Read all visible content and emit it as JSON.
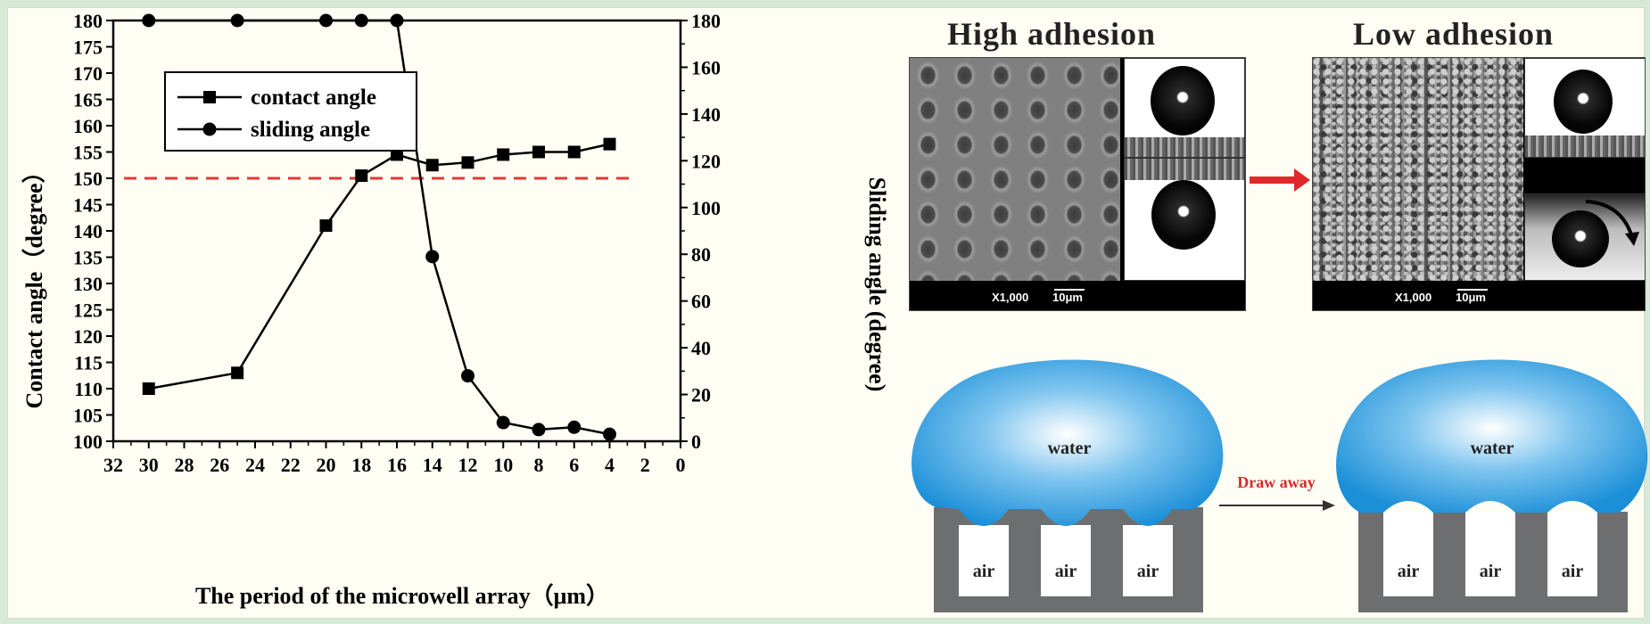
{
  "chart_data": {
    "type": "line",
    "title": "",
    "xlabel": "The period of the microwell array（μm）",
    "ylabel_left": "Contact angle（degree）",
    "ylabel_right": "Sliding angle (degree)",
    "xlim": [
      32,
      0
    ],
    "ylim_left": [
      100,
      180
    ],
    "ylim_right": [
      0,
      180
    ],
    "x_ticks": [
      "32",
      "30",
      "28",
      "26",
      "24",
      "22",
      "20",
      "18",
      "16",
      "14",
      "12",
      "10",
      "8",
      "6",
      "4",
      "2",
      "0"
    ],
    "y_left_ticks": [
      "100",
      "105",
      "110",
      "115",
      "120",
      "125",
      "130",
      "135",
      "140",
      "145",
      "150",
      "155",
      "160",
      "165",
      "170",
      "175",
      "180"
    ],
    "y_right_ticks": [
      "0",
      "20",
      "40",
      "60",
      "80",
      "100",
      "120",
      "140",
      "160",
      "180"
    ],
    "legend": {
      "position": "top-left",
      "entries": [
        "contact angle",
        "sliding angle"
      ]
    },
    "reference_line": {
      "axis": "left",
      "value": 150,
      "style": "dashed",
      "color": "#e03a3a"
    },
    "series": [
      {
        "name": "contact angle",
        "axis": "left",
        "marker": "square",
        "x": [
          30,
          25,
          20,
          18,
          16,
          14,
          12,
          10,
          8,
          6,
          4
        ],
        "values": [
          110,
          113,
          141,
          150.5,
          154.5,
          152.5,
          153,
          154.5,
          155,
          155,
          156.5
        ]
      },
      {
        "name": "sliding angle",
        "axis": "right",
        "marker": "circle",
        "x": [
          30,
          25,
          20,
          18,
          16,
          14,
          12,
          10,
          8,
          6,
          4
        ],
        "values": [
          180,
          180,
          180,
          180,
          180,
          79,
          28,
          8,
          5,
          6,
          3
        ]
      }
    ]
  },
  "figure": {
    "title_high": "High adhesion",
    "title_low": "Low adhesion",
    "magnification": "X1,000",
    "scale": "10μm",
    "arrow_label": "Draw away",
    "water_label": "water",
    "air_label": "air",
    "colors": {
      "arrow": "#e0282a",
      "water": "#1b8fd8",
      "pillar": "#6d6e70",
      "dash": "#e03a3a"
    }
  }
}
